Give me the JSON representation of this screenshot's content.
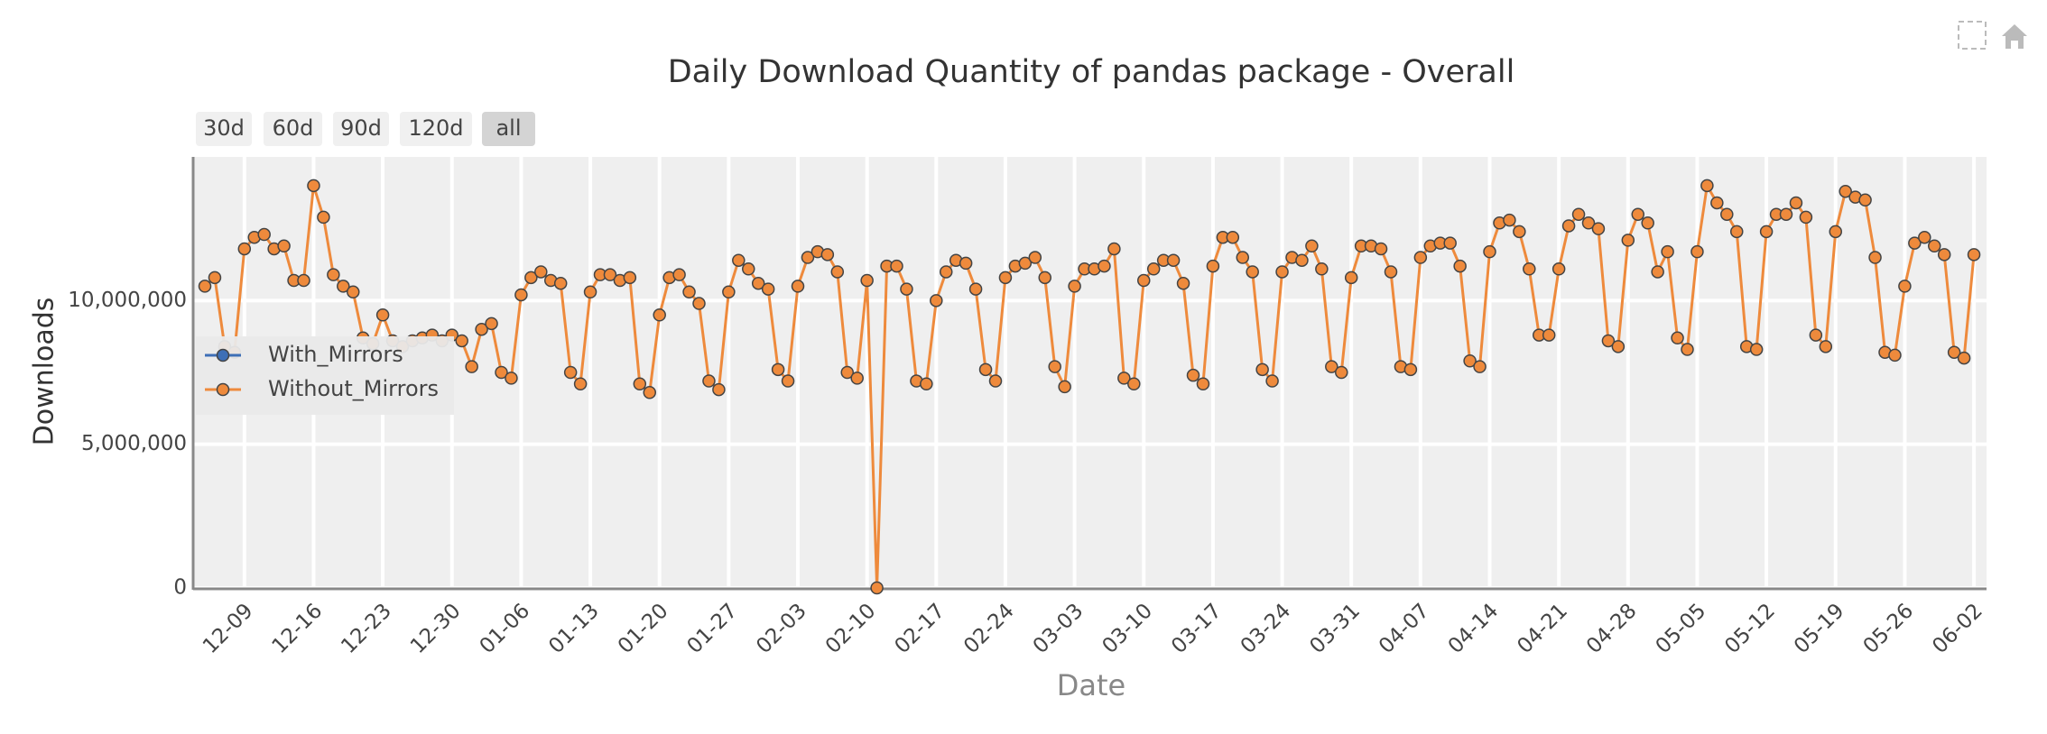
{
  "chart_data": {
    "type": "line",
    "title": "Daily Download Quantity of pandas package - Overall",
    "xlabel": "Date",
    "ylabel": "Downloads",
    "range_buttons": [
      "30d",
      "60d",
      "90d",
      "120d",
      "all"
    ],
    "active_button": 4,
    "categories": [
      null,
      null,
      null,
      null,
      "12-09",
      null,
      null,
      null,
      null,
      null,
      null,
      "12-16",
      null,
      null,
      null,
      null,
      null,
      null,
      "12-23",
      null,
      null,
      null,
      null,
      null,
      null,
      "12-30",
      null,
      null,
      null,
      null,
      null,
      null,
      "01-06",
      null,
      null,
      null,
      null,
      null,
      null,
      "01-13",
      null,
      null,
      null,
      null,
      null,
      null,
      "01-20",
      null,
      null,
      null,
      null,
      null,
      null,
      "01-27",
      null,
      null,
      null,
      null,
      null,
      null,
      "02-03",
      null,
      null,
      null,
      null,
      null,
      null,
      "02-10",
      null,
      null,
      null,
      null,
      null,
      null,
      "02-17",
      null,
      null,
      null,
      null,
      null,
      null,
      "02-24",
      null,
      null,
      null,
      null,
      null,
      null,
      "03-03",
      null,
      null,
      null,
      null,
      null,
      null,
      "03-10",
      null,
      null,
      null,
      null,
      null,
      null,
      "03-17",
      null,
      null,
      null,
      null,
      null,
      null,
      "03-24",
      null,
      null,
      null,
      null,
      null,
      null,
      "03-31",
      null,
      null,
      null,
      null,
      null,
      null,
      "04-07",
      null,
      null,
      null,
      null,
      null,
      null,
      "04-14",
      null,
      null,
      null,
      null,
      null,
      null,
      "04-21",
      null,
      null,
      null,
      null,
      null,
      null,
      "04-28",
      null,
      null,
      null,
      null,
      null,
      null,
      "05-05",
      null,
      null,
      null,
      null,
      null,
      null,
      "05-12",
      null,
      null,
      null,
      null,
      null,
      null,
      "05-19",
      null,
      null,
      null,
      null,
      null,
      null,
      "05-26",
      null,
      null,
      null,
      null,
      null,
      null,
      "06-02"
    ],
    "series": [
      {
        "name": "With_Mirrors",
        "color": "#3d6fb6",
        "values": [
          null,
          null,
          null,
          null,
          null,
          null,
          null,
          null,
          null,
          null,
          null,
          null,
          null,
          null,
          null,
          null,
          null,
          null,
          null,
          null,
          null,
          null,
          null,
          null,
          null,
          null,
          null,
          null,
          null,
          null,
          null,
          null,
          null,
          null,
          null,
          null,
          null,
          null,
          null,
          null,
          null,
          null,
          null,
          null,
          null,
          null,
          null,
          null,
          null,
          null,
          null,
          null,
          null,
          null,
          null,
          null,
          null,
          null,
          null,
          null,
          null,
          null,
          null,
          null,
          null,
          null,
          null,
          null,
          null,
          null,
          null,
          null,
          null,
          null,
          null,
          null,
          null,
          null,
          null,
          null,
          null,
          null,
          null,
          null,
          null,
          null,
          null,
          null,
          null,
          null,
          null,
          null,
          null,
          null,
          null,
          null,
          null,
          null,
          null,
          null,
          null,
          null,
          null,
          null,
          null,
          null,
          null,
          null,
          null,
          null,
          null,
          null,
          null,
          null,
          null,
          null,
          null,
          null,
          null,
          null,
          null,
          null,
          null,
          null,
          null,
          null,
          null,
          null,
          null,
          null,
          null,
          null,
          null,
          null,
          null,
          null,
          null,
          null,
          null,
          null,
          null,
          null,
          null,
          null,
          null,
          null,
          null,
          null,
          null,
          null,
          null,
          null,
          null,
          null,
          null,
          null,
          null,
          null,
          null,
          null,
          null,
          null,
          null,
          null,
          null,
          null,
          null,
          null,
          null,
          null,
          null,
          null,
          null,
          null,
          null,
          null,
          null,
          null,
          null,
          null
        ]
      },
      {
        "name": "Without_Mirrors",
        "color": "#ee8a3c",
        "values": [
          10500000,
          10800000,
          8400000,
          8200000,
          11800000,
          12200000,
          12300000,
          11800000,
          11900000,
          10700000,
          10700000,
          14000000,
          12900000,
          10900000,
          10500000,
          10300000,
          8700000,
          8500000,
          9500000,
          8600000,
          8400000,
          8600000,
          8700000,
          8800000,
          8600000,
          8800000,
          8600000,
          7700000,
          9000000,
          9200000,
          7500000,
          7300000,
          10200000,
          10800000,
          11000000,
          10700000,
          10600000,
          7500000,
          7100000,
          10300000,
          10900000,
          10900000,
          10700000,
          10800000,
          7100000,
          6800000,
          9500000,
          10800000,
          10900000,
          10300000,
          9900000,
          7200000,
          6900000,
          10300000,
          11400000,
          11100000,
          10600000,
          10400000,
          7600000,
          7200000,
          10500000,
          11500000,
          11700000,
          11600000,
          11000000,
          7500000,
          7300000,
          10700000,
          0,
          11200000,
          11200000,
          10400000,
          7200000,
          7100000,
          10000000,
          11000000,
          11400000,
          11300000,
          10400000,
          7600000,
          7200000,
          10800000,
          11200000,
          11300000,
          11500000,
          10800000,
          7700000,
          7000000,
          10500000,
          11100000,
          11100000,
          11200000,
          11800000,
          7300000,
          7100000,
          10700000,
          11100000,
          11400000,
          11400000,
          10600000,
          7400000,
          7100000,
          11200000,
          12200000,
          12200000,
          11500000,
          11000000,
          7600000,
          7200000,
          11000000,
          11500000,
          11400000,
          11900000,
          11100000,
          7700000,
          7500000,
          10800000,
          11900000,
          11900000,
          11800000,
          11000000,
          7700000,
          7600000,
          11500000,
          11900000,
          12000000,
          12000000,
          11200000,
          7900000,
          7700000,
          11700000,
          12700000,
          12800000,
          12400000,
          11100000,
          8800000,
          8800000,
          11100000,
          12600000,
          13000000,
          12700000,
          12500000,
          8600000,
          8400000,
          12100000,
          13000000,
          12700000,
          11000000,
          11700000,
          8700000,
          8300000,
          11700000,
          14000000,
          13400000,
          13000000,
          12400000,
          8400000,
          8300000,
          12400000,
          13000000,
          13000000,
          13400000,
          12900000,
          8800000,
          8400000,
          12400000,
          13800000,
          13600000,
          13500000,
          11500000,
          8200000,
          8100000,
          10500000,
          12000000,
          12200000,
          11900000,
          11600000,
          8200000,
          8000000,
          11600000
        ]
      }
    ],
    "ylim": [
      0,
      15000000
    ],
    "yticks": [
      0,
      {
        "value": 5000000,
        "label": "5,000,000"
      },
      {
        "value": 10000000,
        "label": "10,000,000"
      }
    ],
    "grid": true,
    "markers": true,
    "legend_position": "left"
  }
}
